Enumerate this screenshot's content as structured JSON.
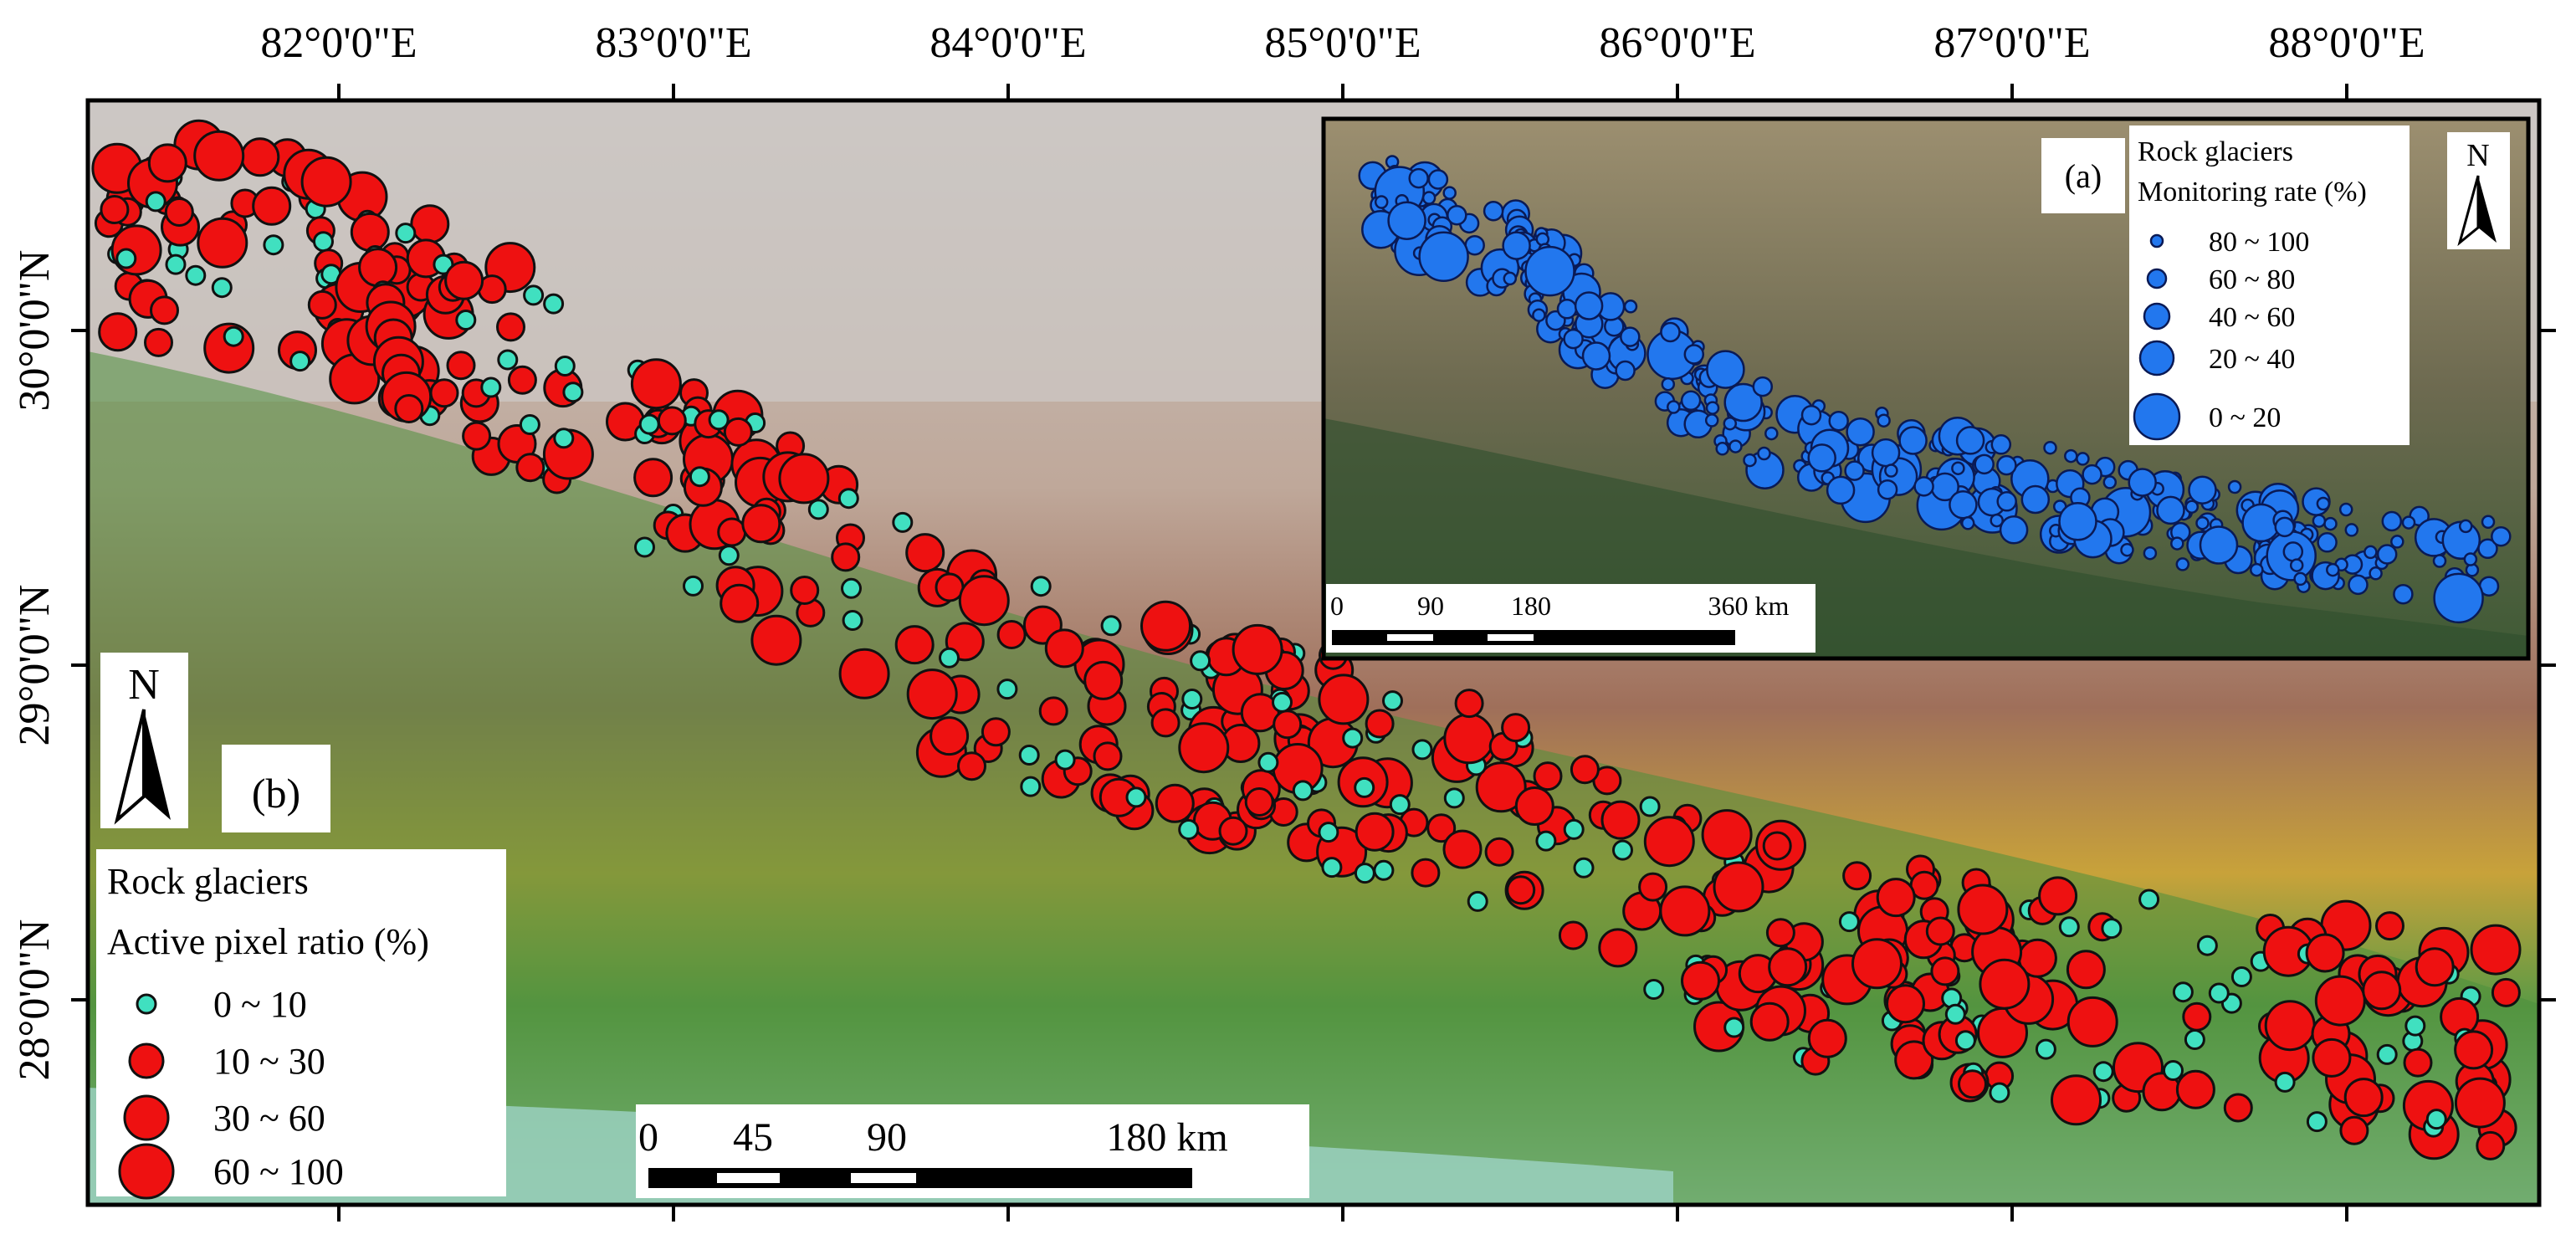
{
  "map": {
    "lon_ticks": [
      "82°0'0\"E",
      "83°0'0\"E",
      "84°0'0\"E",
      "85°0'0\"E",
      "86°0'0\"E",
      "87°0'0\"E",
      "88°0'0\"E"
    ],
    "lat_ticks": [
      "30°0'0\"N",
      "29°0'0\"N",
      "28°0'0\"N"
    ],
    "north_arrow": "N",
    "panel_label": "(b)",
    "legend": {
      "title": "Rock glaciers",
      "subtitle": "Active pixel ratio (%)",
      "classes": [
        "0 ~ 10",
        "10 ~ 30",
        "30 ~ 60",
        "60 ~ 100"
      ],
      "colors": [
        "#40e0c0",
        "#ee1111",
        "#ee1111",
        "#ee1111"
      ]
    },
    "scale_bar": {
      "labels": [
        "0",
        "45",
        "90",
        "180 km"
      ]
    }
  },
  "inset": {
    "panel_label": "(a)",
    "north_arrow": "N",
    "legend": {
      "title": "Rock glaciers",
      "subtitle": "Monitoring rate (%)",
      "classes": [
        "80 ~ 100",
        "60 ~ 80",
        "40 ~ 60",
        "20 ~ 40",
        "0 ~ 20"
      ],
      "color": "#2277ee"
    },
    "scale_bar": {
      "labels": [
        "0",
        "90",
        "180",
        "360 km"
      ]
    }
  }
}
